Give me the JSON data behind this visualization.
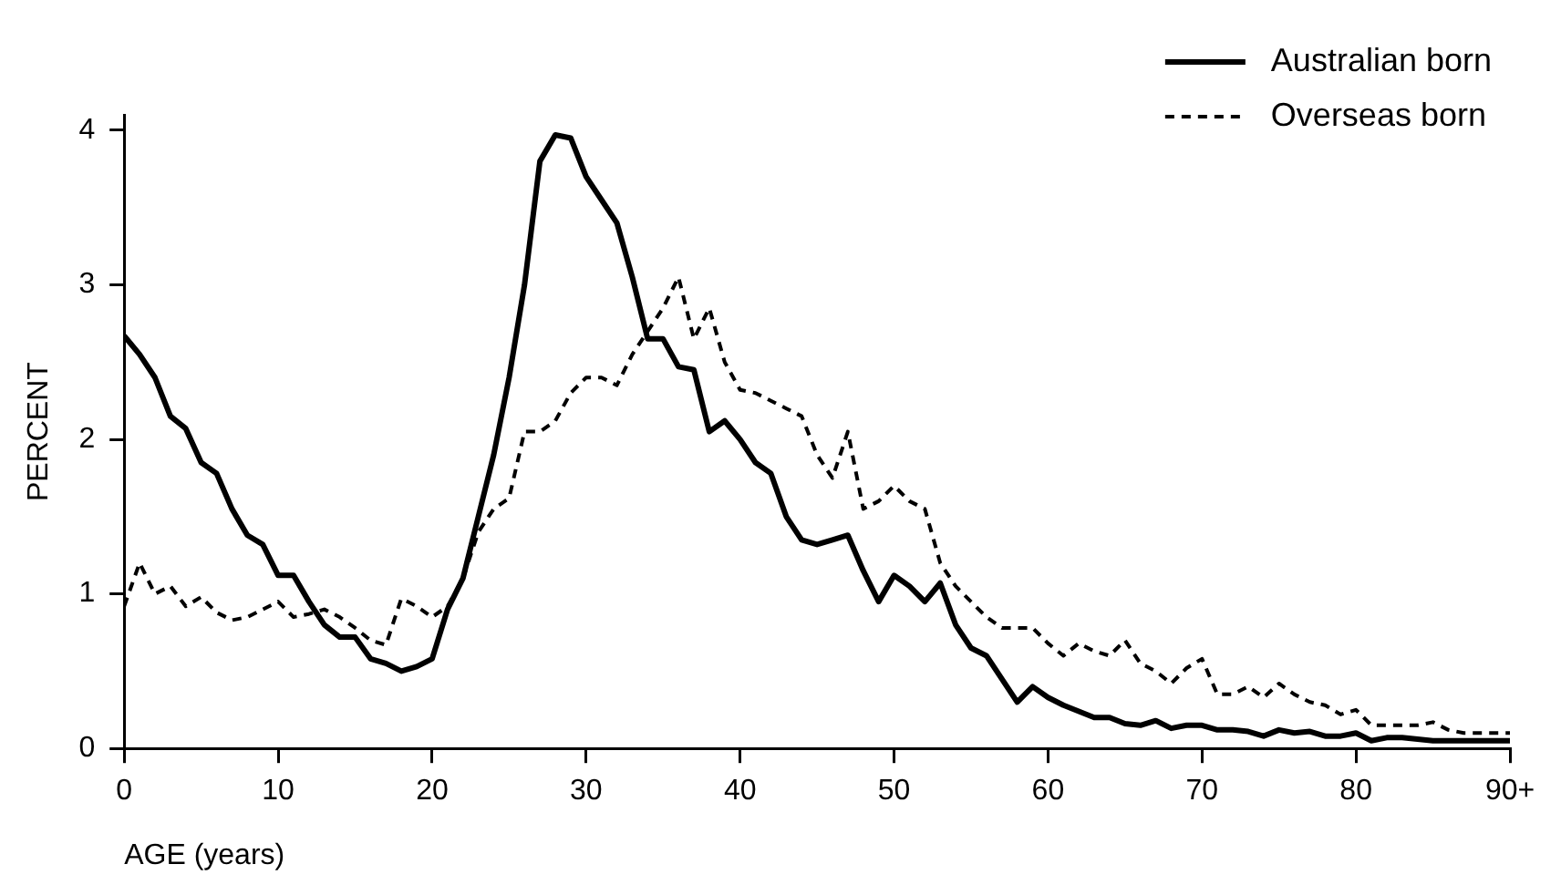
{
  "chart_data": {
    "type": "line",
    "xlabel": "AGE (years)",
    "ylabel": "PERCENT",
    "x": [
      0,
      1,
      2,
      3,
      4,
      5,
      6,
      7,
      8,
      9,
      10,
      11,
      12,
      13,
      14,
      15,
      16,
      17,
      18,
      19,
      20,
      21,
      22,
      23,
      24,
      25,
      26,
      27,
      28,
      29,
      30,
      31,
      32,
      33,
      34,
      35,
      36,
      37,
      38,
      39,
      40,
      41,
      42,
      43,
      44,
      45,
      46,
      47,
      48,
      49,
      50,
      51,
      52,
      53,
      54,
      55,
      56,
      57,
      58,
      59,
      60,
      61,
      62,
      63,
      64,
      65,
      66,
      67,
      68,
      69,
      70,
      71,
      72,
      73,
      74,
      75,
      76,
      77,
      78,
      79,
      80,
      81,
      82,
      83,
      84,
      85,
      86,
      87,
      88,
      89,
      90
    ],
    "series": [
      {
        "name": "Australian born",
        "color": "#000000",
        "line_style": "solid",
        "values": [
          2.67,
          2.55,
          2.4,
          2.15,
          2.07,
          1.85,
          1.78,
          1.55,
          1.38,
          1.32,
          1.12,
          1.12,
          0.95,
          0.8,
          0.72,
          0.72,
          0.58,
          0.55,
          0.5,
          0.53,
          0.58,
          0.9,
          1.1,
          1.5,
          1.9,
          2.4,
          3.0,
          3.8,
          3.97,
          3.95,
          3.7,
          3.55,
          3.4,
          3.05,
          2.65,
          2.65,
          2.47,
          2.45,
          2.05,
          2.12,
          2.0,
          1.85,
          1.78,
          1.5,
          1.35,
          1.32,
          1.35,
          1.38,
          1.15,
          0.95,
          1.12,
          1.05,
          0.95,
          1.07,
          0.8,
          0.65,
          0.6,
          0.45,
          0.3,
          0.4,
          0.33,
          0.28,
          0.24,
          0.2,
          0.2,
          0.16,
          0.15,
          0.18,
          0.13,
          0.15,
          0.15,
          0.12,
          0.12,
          0.11,
          0.08,
          0.12,
          0.1,
          0.11,
          0.08,
          0.08,
          0.1,
          0.05,
          0.07,
          0.07,
          0.06,
          0.05,
          0.05,
          0.05,
          0.05,
          0.05,
          0.05
        ]
      },
      {
        "name": "Overseas born",
        "color": "#000000",
        "line_style": "dashed",
        "values": [
          0.92,
          1.2,
          1.0,
          1.05,
          0.92,
          0.98,
          0.88,
          0.83,
          0.85,
          0.9,
          0.95,
          0.85,
          0.87,
          0.9,
          0.85,
          0.78,
          0.7,
          0.67,
          0.97,
          0.92,
          0.85,
          0.92,
          1.1,
          1.4,
          1.55,
          1.62,
          2.05,
          2.05,
          2.12,
          2.3,
          2.4,
          2.4,
          2.35,
          2.55,
          2.7,
          2.85,
          3.05,
          2.65,
          2.85,
          2.5,
          2.32,
          2.3,
          2.25,
          2.2,
          2.15,
          1.9,
          1.75,
          2.05,
          1.55,
          1.6,
          1.7,
          1.6,
          1.55,
          1.2,
          1.05,
          0.95,
          0.85,
          0.78,
          0.78,
          0.78,
          0.68,
          0.6,
          0.68,
          0.63,
          0.6,
          0.7,
          0.55,
          0.5,
          0.42,
          0.52,
          0.58,
          0.35,
          0.35,
          0.4,
          0.33,
          0.42,
          0.35,
          0.3,
          0.28,
          0.22,
          0.25,
          0.15,
          0.15,
          0.15,
          0.15,
          0.17,
          0.12,
          0.1,
          0.1,
          0.1,
          0.1
        ]
      }
    ],
    "xlim": [
      0,
      90
    ],
    "xticks": [
      0,
      10,
      20,
      30,
      40,
      50,
      60,
      70,
      80,
      {
        "value": 90,
        "label": "90+"
      }
    ],
    "ylim": [
      0,
      4.1
    ],
    "yticks": [
      0,
      1,
      2,
      3,
      4
    ],
    "grid": false,
    "legend": "top right",
    "marker": "none"
  }
}
